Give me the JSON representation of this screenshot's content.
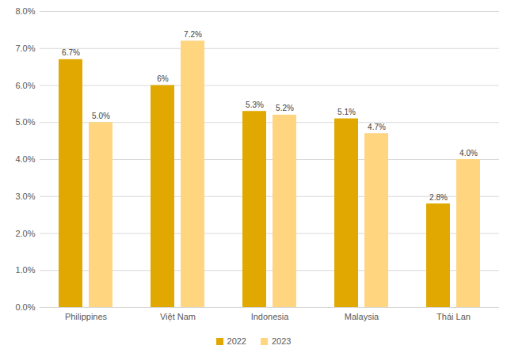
{
  "chart_data": {
    "type": "bar",
    "categories": [
      "Philippines",
      "Việt Nam",
      "Indonesia",
      "Malaysia",
      "Thái Lan"
    ],
    "series": [
      {
        "name": "2022",
        "color": "#E0A800",
        "values": [
          6.7,
          6,
          5.3,
          5.1,
          2.8
        ],
        "value_labels": [
          "6.7%",
          "6%",
          "5.3%",
          "5.1%",
          "2.8%"
        ]
      },
      {
        "name": "2023",
        "color": "#FFD580",
        "values": [
          5.0,
          7.2,
          5.2,
          4.7,
          4.0
        ],
        "value_labels": [
          "5.0%",
          "7.2%",
          "5.2%",
          "4.7%",
          "4.0%"
        ]
      }
    ],
    "ylim": [
      0,
      8
    ],
    "yticks": [
      {
        "value": 0,
        "label": "0.0%"
      },
      {
        "value": 1,
        "label": "1.0%"
      },
      {
        "value": 2,
        "label": "2.0%"
      },
      {
        "value": 3,
        "label": "3.0%"
      },
      {
        "value": 4,
        "label": "4.0%"
      },
      {
        "value": 5,
        "label": "5.0%"
      },
      {
        "value": 6,
        "label": "6.0%"
      },
      {
        "value": 7,
        "label": "7.0%"
      },
      {
        "value": 8,
        "label": "8.0%"
      }
    ],
    "grid": true,
    "data_labels": true,
    "legend": "bottom"
  }
}
